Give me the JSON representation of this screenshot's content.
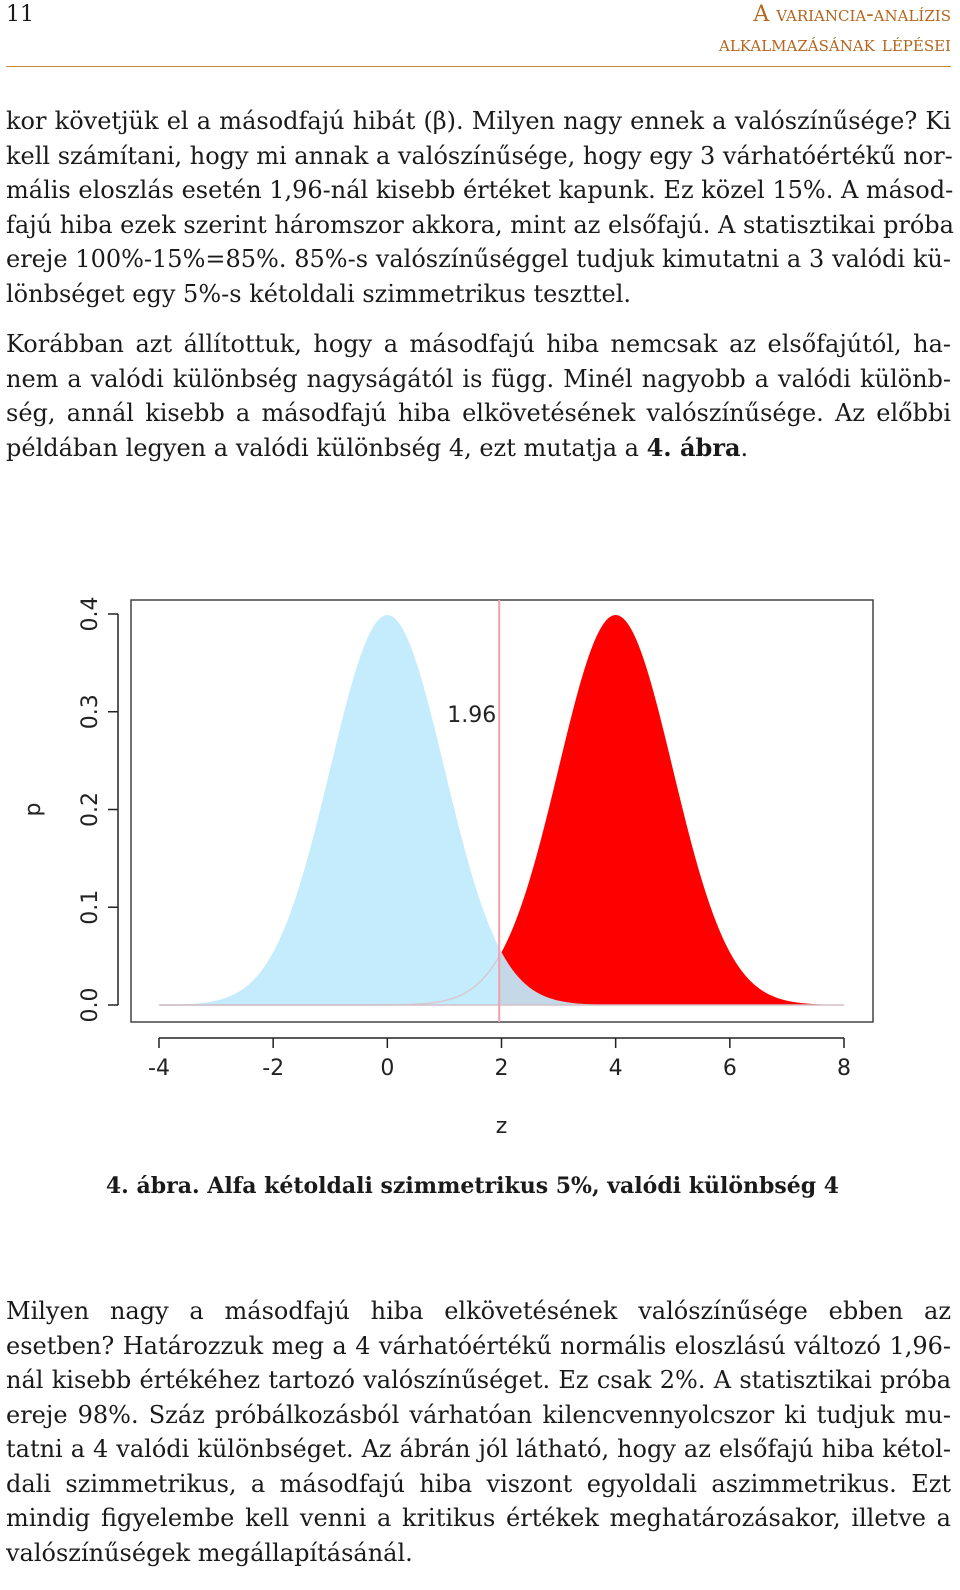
{
  "header": {
    "page_number": "11",
    "running_title_line1": "A variancia-analízis",
    "running_title_line2": "alkalmazásának lépései"
  },
  "para1": [
    "kor követjük el a másodfajú hibát (β). Milyen nagy ennek a valószínűsége? Ki",
    "kell számítani, hogy mi annak a valószínűsége, hogy egy 3 várhatóértékű nor-",
    "mális eloszlás esetén 1,96-nál kisebb értéket kapunk. Ez közel 15%. A másod-",
    "fajú hiba ezek szerint háromszor akkora, mint az elsőfajú. A statisztikai próba",
    "ereje 100%-15%=85%. 85%-s valószínűséggel tudjuk kimutatni a 3 valódi kü-",
    "lönbséget egy 5%-s kétoldali szimmetrikus teszttel."
  ],
  "para2": [
    "Korábban azt állítottuk, hogy a másodfajú hiba nemcsak az elsőfajútól, ha-",
    "nem a valódi különbség nagyságától is függ. Minél nagyobb a valódi különb-",
    "ség, annál kisebb a másodfajú hiba elkövetésének valószínűsége. Az előbbi",
    "példában legyen a valódi különbség 4, ezt mutatja a "
  ],
  "para2_ref": "4. ábra",
  "para2_end": ".",
  "caption": {
    "label": "4. ábra.",
    "text": " Alfa kétoldali szimmetrikus 5%, valódi különbség 4"
  },
  "para3": [
    "Milyen nagy a másodfajú hiba elkövetésének valószínűsége ebben az",
    "esetben? Határozzuk meg a 4 várhatóértékű normális eloszlású változó 1,96-",
    "nál kisebb értékéhez tartozó valószínűséget. Ez csak 2%. A statisztikai próba",
    "ereje 98%. Száz próbálkozásból várhatóan kilencvennyolcszor ki tudjuk mu-",
    "tatni a 4 valódi különbséget. Az ábrán jól látható, hogy az elsőfajú hiba kétol-",
    "dali szimmetrikus, a másodfajú hiba viszont egyoldali aszimmetrikus. Ezt",
    "mindig figyelembe kell venni a kritikus értékek meghatározásakor, illetve a",
    "valószínűségek megállapításánál."
  ],
  "chart_data": {
    "type": "area",
    "xlabel": "z",
    "ylabel": "p",
    "xlim": [
      -4,
      8
    ],
    "ylim": [
      0,
      0.4
    ],
    "x_ticks": [
      "-4",
      "-2",
      "0",
      "2",
      "4",
      "6",
      "8"
    ],
    "y_ticks": [
      "0.0",
      "0.1",
      "0.2",
      "0.3",
      "0.4"
    ],
    "series": [
      {
        "distribution": "normal",
        "mean": 0,
        "sd": 1,
        "color": "#bfeafc"
      },
      {
        "distribution": "normal",
        "mean": 4,
        "sd": 1,
        "color": "#ff0000",
        "shaded_from": 1.96
      }
    ],
    "critical_value": 1.96,
    "critical_line_color": "#f0a0a8",
    "annotation": "1.96",
    "annotation_color": "#d03030",
    "grid": false
  }
}
